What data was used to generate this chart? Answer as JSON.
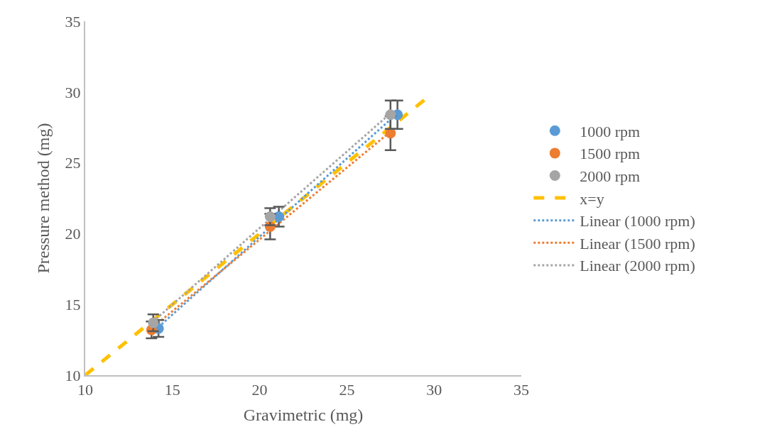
{
  "chart_data": {
    "type": "scatter",
    "xlabel": "Gravimetric (mg)",
    "ylabel": "Pressure method (mg)",
    "xlim": [
      10,
      35
    ],
    "xticks": [
      10,
      15,
      20,
      25,
      30,
      35
    ],
    "ylim": [
      10,
      35
    ],
    "yticks": [
      10,
      15,
      20,
      25,
      30,
      35
    ],
    "legend": "right",
    "series": [
      {
        "name": "1000 rpm",
        "marker": "circle",
        "color": "#5b9bd5",
        "x": [
          14.2,
          21.1,
          27.9
        ],
        "values": [
          13.3,
          21.2,
          28.4
        ],
        "errors": [
          0.6,
          0.7,
          1.0
        ]
      },
      {
        "name": "1500 rpm",
        "marker": "circle",
        "color": "#ed7d31",
        "x": [
          13.8,
          20.6,
          27.5
        ],
        "values": [
          13.2,
          20.5,
          27.1
        ],
        "errors": [
          0.6,
          0.9,
          1.2
        ]
      },
      {
        "name": "2000 rpm",
        "marker": "circle",
        "color": "#a5a5a5",
        "x": [
          13.9,
          20.6,
          27.5
        ],
        "values": [
          13.7,
          21.2,
          28.4
        ],
        "errors": [
          0.6,
          0.6,
          1.0
        ]
      },
      {
        "name": "x=y",
        "type": "line",
        "color": "#ffc000",
        "line_style": "dashed",
        "x": [
          10,
          29.5
        ],
        "values": [
          10,
          29.5
        ]
      },
      {
        "name": "Linear (1000 rpm)",
        "type": "line",
        "color": "#5b9bd5",
        "line_style": "dotted",
        "x": [
          14.2,
          27.9
        ],
        "values": [
          13.4,
          28.5
        ]
      },
      {
        "name": "Linear (1500 rpm)",
        "type": "line",
        "color": "#ed7d31",
        "line_style": "dotted",
        "x": [
          13.8,
          27.5
        ],
        "values": [
          13.3,
          27.2
        ]
      },
      {
        "name": "Linear (2000 rpm)",
        "type": "line",
        "color": "#a5a5a5",
        "line_style": "dotted",
        "x": [
          13.9,
          27.5
        ],
        "values": [
          13.8,
          28.5
        ]
      }
    ]
  }
}
